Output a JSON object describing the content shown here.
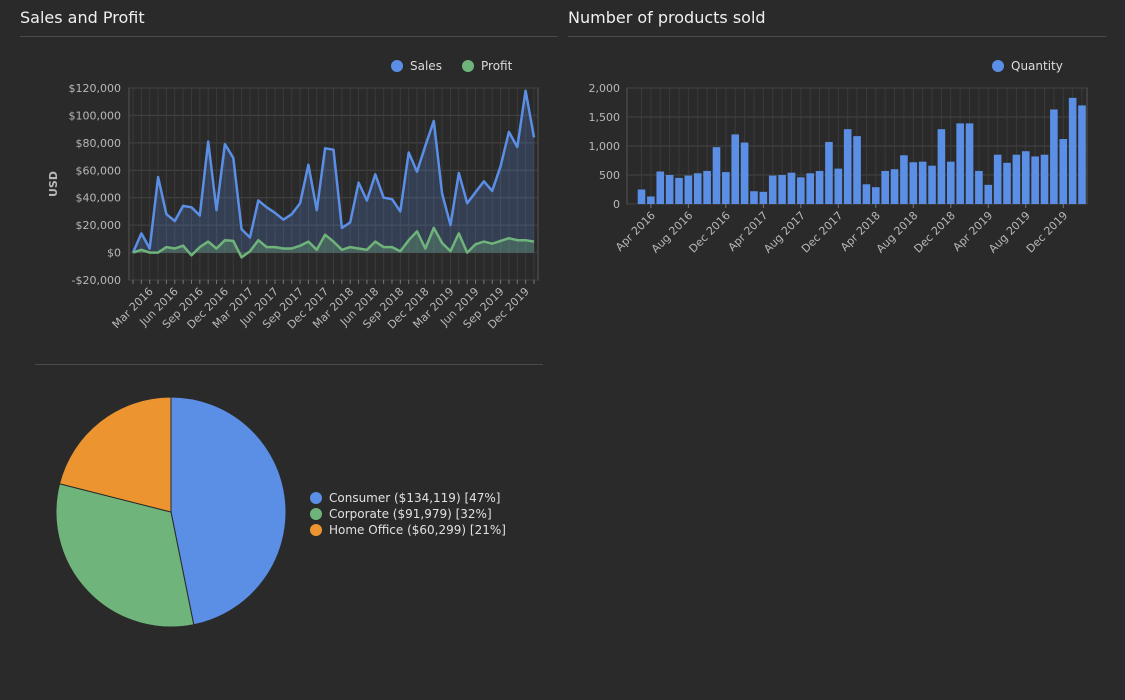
{
  "panels": {
    "sales_profit_title": "Sales and Profit",
    "products_title": "Number of products sold"
  },
  "colors": {
    "sales": "#5b8fe6",
    "profit": "#6fb47a",
    "quantity": "#5b8fe6",
    "consumer": "#5b8fe6",
    "corporate": "#6fb47a",
    "home_office": "#ec9430"
  },
  "chart_data": [
    {
      "type": "area",
      "title": "Sales and Profit",
      "ylabel": "USD",
      "ylim": [
        -20000,
        120000
      ],
      "yticks": [
        120000,
        100000,
        80000,
        60000,
        40000,
        20000,
        0,
        -20000
      ],
      "ytick_labels": [
        "$120,000",
        "$100,000",
        "$80,000",
        "$60,000",
        "$40,000",
        "$20,000",
        "$0",
        "-$20,000"
      ],
      "xtick_labels": [
        "Mar 2016",
        "Jun 2016",
        "Sep 2016",
        "Dec 2016",
        "Mar 2017",
        "Jun 2017",
        "Sep 2017",
        "Dec 2017",
        "Mar 2018",
        "Jun 2018",
        "Sep 2018",
        "Dec 2018",
        "Mar 2019",
        "Jun 2019",
        "Sep 2019",
        "Dec 2019"
      ],
      "legend_position": "top-right",
      "grid": true,
      "series": [
        {
          "name": "Sales",
          "values": [
            0,
            14000,
            3000,
            55000,
            28000,
            23000,
            34000,
            33000,
            27000,
            81000,
            31000,
            79000,
            69000,
            17000,
            11000,
            38000,
            33000,
            29000,
            24000,
            28000,
            36000,
            64000,
            31000,
            76000,
            75000,
            18000,
            22000,
            51000,
            38000,
            57000,
            40000,
            39000,
            30000,
            73000,
            59000,
            78000,
            96000,
            43000,
            20000,
            58000,
            36000,
            44000,
            52000,
            45000,
            63000,
            88000,
            77000,
            118000,
            84000
          ]
        },
        {
          "name": "Profit",
          "values": [
            0,
            2000,
            0,
            0,
            4000,
            3000,
            5000,
            -2000,
            4000,
            8000,
            3000,
            9000,
            8500,
            -3500,
            1000,
            9000,
            4000,
            4000,
            3000,
            3000,
            5000,
            8000,
            2000,
            13000,
            8000,
            2000,
            4000,
            3000,
            2000,
            8000,
            4000,
            4000,
            1000,
            9000,
            15500,
            3000,
            18000,
            7000,
            1000,
            14000,
            0,
            6000,
            8000,
            6500,
            8500,
            10500,
            9000,
            9000,
            8000
          ]
        }
      ]
    },
    {
      "type": "bar",
      "title": "Number of products sold",
      "ylim": [
        0,
        2000
      ],
      "yticks": [
        2000,
        1500,
        1000,
        500,
        0
      ],
      "ytick_labels": [
        "2,000",
        "1,500",
        "1,000",
        "500",
        "0"
      ],
      "xtick_labels": [
        "Apr 2016",
        "Aug 2016",
        "Dec 2016",
        "Apr 2017",
        "Aug 2017",
        "Dec 2017",
        "Apr 2018",
        "Aug 2018",
        "Dec 2018",
        "Apr 2019",
        "Aug 2019",
        "Dec 2019"
      ],
      "legend_position": "top-right",
      "grid": true,
      "series": [
        {
          "name": "Quantity",
          "values": [
            250,
            130,
            560,
            500,
            450,
            490,
            530,
            570,
            980,
            550,
            1200,
            1060,
            220,
            210,
            490,
            500,
            540,
            460,
            530,
            570,
            1070,
            610,
            1290,
            1170,
            340,
            290,
            570,
            600,
            840,
            720,
            730,
            660,
            1290,
            730,
            1390,
            1390,
            570,
            330,
            850,
            710,
            850,
            910,
            820,
            850,
            1630,
            1120,
            1830,
            1700
          ]
        }
      ]
    },
    {
      "type": "pie",
      "slices": [
        {
          "label": "Consumer ($134,119) [47%]",
          "value": 134119
        },
        {
          "label": "Corporate ($91,979) [32%]",
          "value": 91979
        },
        {
          "label": "Home Office ($60,299) [21%]",
          "value": 60299
        }
      ]
    }
  ]
}
